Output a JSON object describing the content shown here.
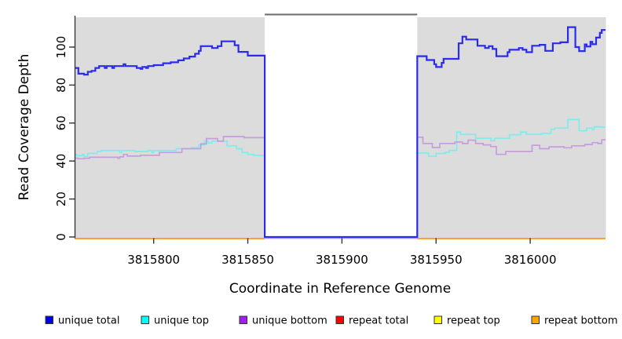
{
  "chart_data": {
    "type": "line",
    "subtype": "step",
    "title": "",
    "xlabel": "Coordinate in Reference Genome",
    "ylabel": "Read Coverage Depth",
    "xlim": [
      3815758,
      3816040
    ],
    "ylim": [
      0,
      115.7
    ],
    "x_ticks": [
      3815800,
      3815850,
      3815900,
      3815950,
      3816000
    ],
    "y_ticks": [
      0,
      20,
      40,
      60,
      80,
      100
    ],
    "grid": false,
    "legend_position": "bottom",
    "colors": {
      "plot_background": "#dcdcdc",
      "gap_fill": "#ffffff",
      "gap_top_border": "#6a6a6a",
      "axis_line": "#3a3a3a",
      "tick": "#333333",
      "text": "#000000",
      "legend_swatch_border": "#333333"
    },
    "gap_region": {
      "start": 3815859,
      "end": 3815940
    },
    "series": [
      {
        "name": "unique total",
        "legend_color": "#0000ee",
        "line_color": "#2b2bee",
        "line_width": 2.2,
        "points": [
          [
            3815758,
            89
          ],
          [
            3815760,
            86
          ],
          [
            3815763,
            85.5
          ],
          [
            3815765,
            87
          ],
          [
            3815767,
            87.5
          ],
          [
            3815769,
            89
          ],
          [
            3815771,
            90
          ],
          [
            3815774,
            89
          ],
          [
            3815775,
            90
          ],
          [
            3815778,
            89
          ],
          [
            3815779,
            90
          ],
          [
            3815784,
            91
          ],
          [
            3815785,
            90
          ],
          [
            3815791,
            89
          ],
          [
            3815793,
            88.5
          ],
          [
            3815794,
            89.5
          ],
          [
            3815796,
            89
          ],
          [
            3815797,
            90
          ],
          [
            3815800,
            90.5
          ],
          [
            3815805,
            91.5
          ],
          [
            3815809,
            92
          ],
          [
            3815813,
            93
          ],
          [
            3815816,
            94
          ],
          [
            3815819,
            95
          ],
          [
            3815822,
            96.5
          ],
          [
            3815824,
            98
          ],
          [
            3815825,
            100.5
          ],
          [
            3815831,
            99.5
          ],
          [
            3815834,
            100.5
          ],
          [
            3815836,
            103
          ],
          [
            3815843,
            101
          ],
          [
            3815845,
            97.5
          ],
          [
            3815850,
            95.5
          ],
          [
            3815859,
            0
          ],
          [
            3815940,
            95.2
          ],
          [
            3815945,
            93.2
          ],
          [
            3815949,
            91
          ],
          [
            3815950,
            89.5
          ],
          [
            3815953,
            91.7
          ],
          [
            3815954,
            93.8
          ],
          [
            3815962,
            102
          ],
          [
            3815964,
            105.5
          ],
          [
            3815966,
            104
          ],
          [
            3815972,
            100.7
          ],
          [
            3815976,
            99.5
          ],
          [
            3815978,
            100.5
          ],
          [
            3815980,
            99
          ],
          [
            3815982,
            95.2
          ],
          [
            3815988,
            97.3
          ],
          [
            3815989,
            98.6
          ],
          [
            3815994,
            99.5
          ],
          [
            3815996,
            98.6
          ],
          [
            3815998,
            97.3
          ],
          [
            3816001,
            100.7
          ],
          [
            3816005,
            101.2
          ],
          [
            3816008,
            98
          ],
          [
            3816012,
            102
          ],
          [
            3816016,
            102.5
          ],
          [
            3816020,
            110.5
          ],
          [
            3816024,
            100
          ],
          [
            3816026,
            97.9
          ],
          [
            3816029,
            101.4
          ],
          [
            3816030,
            100.3
          ],
          [
            3816032,
            102.8
          ],
          [
            3816033,
            101.5
          ],
          [
            3816035,
            105
          ],
          [
            3816037,
            107.5
          ],
          [
            3816038,
            109
          ]
        ]
      },
      {
        "name": "unique top",
        "legend_color": "#00ffff",
        "line_color": "#7dedec",
        "line_width": 1.7,
        "points": [
          [
            3815758,
            43.5
          ],
          [
            3815759,
            42.8
          ],
          [
            3815762,
            43.5
          ],
          [
            3815763,
            42.5
          ],
          [
            3815765,
            44
          ],
          [
            3815770,
            45
          ],
          [
            3815772,
            45.5
          ],
          [
            3815782,
            44.5
          ],
          [
            3815783,
            45.5
          ],
          [
            3815790,
            45
          ],
          [
            3815797,
            45.5
          ],
          [
            3815799,
            44.5
          ],
          [
            3815800,
            45.5
          ],
          [
            3815812,
            46.5
          ],
          [
            3815820,
            47
          ],
          [
            3815824,
            48.5
          ],
          [
            3815827,
            50.5
          ],
          [
            3815829,
            49.5
          ],
          [
            3815831,
            50.5
          ],
          [
            3815839,
            48
          ],
          [
            3815844,
            46.5
          ],
          [
            3815847,
            44.5
          ],
          [
            3815850,
            43.5
          ],
          [
            3815853,
            43
          ],
          [
            3815859,
            0
          ],
          [
            3815940,
            44.2
          ],
          [
            3815946,
            42.5
          ],
          [
            3815950,
            44
          ],
          [
            3815955,
            44.6
          ],
          [
            3815957,
            45.6
          ],
          [
            3815961,
            55.2
          ],
          [
            3815963,
            54
          ],
          [
            3815971,
            52
          ],
          [
            3815979,
            50.7
          ],
          [
            3815981,
            52
          ],
          [
            3815989,
            53.9
          ],
          [
            3815995,
            55.2
          ],
          [
            3815998,
            54.1
          ],
          [
            3816006,
            54.5
          ],
          [
            3816011,
            56.6
          ],
          [
            3816013,
            57.3
          ],
          [
            3816020,
            61.8
          ],
          [
            3816026,
            55.9
          ],
          [
            3816030,
            57.3
          ],
          [
            3816033,
            56.6
          ],
          [
            3816034,
            58
          ],
          [
            3816038,
            57.8
          ]
        ]
      },
      {
        "name": "unique bottom",
        "legend_color": "#a020f0",
        "line_color": "#c69dde",
        "line_width": 1.7,
        "points": [
          [
            3815758,
            41.5
          ],
          [
            3815760,
            41.2
          ],
          [
            3815763,
            41.5
          ],
          [
            3815766,
            42
          ],
          [
            3815781,
            41.5
          ],
          [
            3815782,
            42.2
          ],
          [
            3815784,
            43.5
          ],
          [
            3815786,
            42.6
          ],
          [
            3815793,
            43
          ],
          [
            3815803,
            44.5
          ],
          [
            3815815,
            46.5
          ],
          [
            3815825,
            49
          ],
          [
            3815828,
            51.8
          ],
          [
            3815834,
            50.4
          ],
          [
            3815837,
            52.9
          ],
          [
            3815848,
            52.3
          ],
          [
            3815859,
            0
          ],
          [
            3815940,
            52.5
          ],
          [
            3815943,
            49.2
          ],
          [
            3815948,
            47.1
          ],
          [
            3815952,
            49.2
          ],
          [
            3815960,
            50
          ],
          [
            3815964,
            49.2
          ],
          [
            3815967,
            51
          ],
          [
            3815971,
            49.2
          ],
          [
            3815975,
            48.5
          ],
          [
            3815979,
            47.6
          ],
          [
            3815982,
            43.5
          ],
          [
            3815987,
            45
          ],
          [
            3816001,
            48.3
          ],
          [
            3816005,
            46.5
          ],
          [
            3816010,
            47.5
          ],
          [
            3816018,
            47
          ],
          [
            3816022,
            48
          ],
          [
            3816029,
            48.7
          ],
          [
            3816033,
            49.7
          ],
          [
            3816036,
            49.2
          ],
          [
            3816038,
            51.2
          ]
        ]
      },
      {
        "name": "repeat total",
        "legend_color": "#ff0000",
        "line_color": "#ee2222",
        "line_width": 2,
        "points": [
          [
            3815758,
            0
          ]
        ]
      },
      {
        "name": "repeat top",
        "legend_color": "#ffff00",
        "line_color": "#ffff33",
        "line_width": 2,
        "points": [
          [
            3815758,
            0
          ]
        ]
      },
      {
        "name": "repeat bottom",
        "legend_color": "#ffa500",
        "line_color": "#ffa030",
        "line_width": 2,
        "points": [
          [
            3815758,
            0
          ]
        ]
      }
    ]
  }
}
